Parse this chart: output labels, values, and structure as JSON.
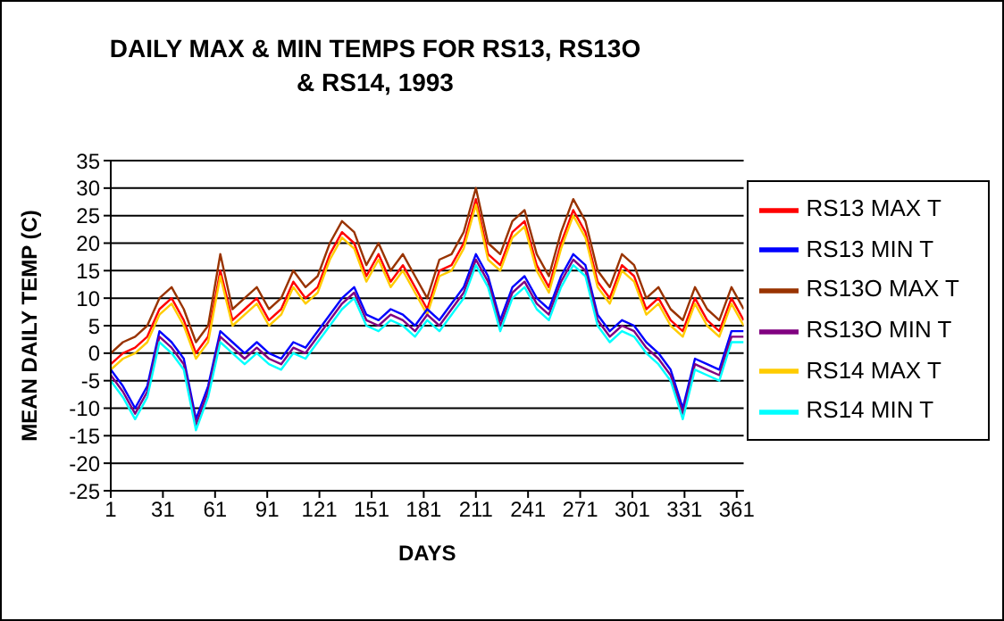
{
  "chart_data": {
    "type": "line",
    "title": "DAILY MAX & MIN TEMPS FOR RS13, RS13O & RS14, 1993",
    "xlabel": "DAYS",
    "ylabel": "MEAN DAILY TEMP (C)",
    "x": [
      1,
      8,
      15,
      22,
      29,
      36,
      43,
      50,
      57,
      64,
      71,
      78,
      85,
      92,
      99,
      106,
      113,
      120,
      127,
      134,
      141,
      148,
      155,
      162,
      169,
      176,
      183,
      190,
      197,
      204,
      211,
      218,
      225,
      232,
      239,
      246,
      253,
      260,
      267,
      274,
      281,
      288,
      295,
      302,
      309,
      316,
      323,
      330,
      337,
      344,
      351,
      358,
      365
    ],
    "series": [
      {
        "name": "RS13 MAX T",
        "color": "#ff0000",
        "values": [
          -2,
          0,
          1,
          3,
          8,
          10,
          6,
          0,
          3,
          15,
          6,
          8,
          10,
          6,
          8,
          13,
          10,
          12,
          18,
          22,
          20,
          14,
          18,
          13,
          16,
          12,
          8,
          15,
          16,
          20,
          28,
          18,
          16,
          22,
          24,
          16,
          12,
          20,
          26,
          22,
          13,
          10,
          16,
          14,
          8,
          10,
          6,
          4,
          10,
          6,
          4,
          10,
          6
        ]
      },
      {
        "name": "RS13O MAX T",
        "color": "#993300",
        "values": [
          0,
          2,
          3,
          5,
          10,
          12,
          8,
          2,
          5,
          18,
          8,
          10,
          12,
          8,
          10,
          15,
          12,
          14,
          20,
          24,
          22,
          16,
          20,
          15,
          18,
          14,
          10,
          17,
          18,
          22,
          30,
          20,
          18,
          24,
          26,
          18,
          14,
          22,
          28,
          24,
          15,
          12,
          18,
          16,
          10,
          12,
          8,
          6,
          12,
          8,
          6,
          12,
          8
        ]
      },
      {
        "name": "RS14 MAX T",
        "color": "#ffcc00",
        "values": [
          -3,
          -1,
          0,
          2,
          7,
          9,
          5,
          -1,
          2,
          14,
          5,
          7,
          9,
          5,
          7,
          12,
          9,
          11,
          17,
          21,
          19,
          13,
          17,
          12,
          15,
          11,
          7,
          14,
          15,
          19,
          27,
          17,
          15,
          21,
          23,
          15,
          11,
          19,
          25,
          21,
          12,
          9,
          15,
          13,
          7,
          9,
          5,
          3,
          9,
          5,
          3,
          9,
          5
        ]
      },
      {
        "name": "RS13 MIN T",
        "color": "#0000ff",
        "values": [
          -3,
          -6,
          -10,
          -6,
          4,
          2,
          -1,
          -12,
          -6,
          4,
          2,
          0,
          2,
          0,
          -1,
          2,
          1,
          4,
          7,
          10,
          12,
          7,
          6,
          8,
          7,
          5,
          8,
          6,
          9,
          12,
          18,
          14,
          6,
          12,
          14,
          10,
          8,
          14,
          18,
          16,
          7,
          4,
          6,
          5,
          2,
          0,
          -3,
          -10,
          -1,
          -2,
          -3,
          4,
          4
        ]
      },
      {
        "name": "RS13O MIN T",
        "color": "#800080",
        "values": [
          -4,
          -7,
          -11,
          -7,
          3,
          1,
          -2,
          -13,
          -7,
          3,
          1,
          -1,
          1,
          -1,
          -2,
          1,
          0,
          3,
          6,
          9,
          11,
          6,
          5,
          7,
          6,
          4,
          7,
          5,
          8,
          11,
          17,
          13,
          5,
          11,
          13,
          9,
          7,
          13,
          17,
          15,
          6,
          3,
          5,
          4,
          1,
          -1,
          -4,
          -11,
          -2,
          -3,
          -4,
          3,
          3
        ]
      },
      {
        "name": "RS14 MIN T",
        "color": "#00ffff",
        "values": [
          -5,
          -8,
          -12,
          -8,
          2,
          0,
          -3,
          -14,
          -8,
          2,
          0,
          -2,
          0,
          -2,
          -3,
          0,
          -1,
          2,
          5,
          8,
          10,
          5,
          4,
          6,
          5,
          3,
          6,
          4,
          7,
          10,
          16,
          12,
          4,
          10,
          12,
          8,
          6,
          12,
          16,
          14,
          5,
          2,
          4,
          3,
          0,
          -2,
          -5,
          -12,
          -3,
          -4,
          -5,
          2,
          2
        ]
      }
    ],
    "xlim": [
      1,
      365
    ],
    "xticks": [
      1,
      31,
      61,
      91,
      121,
      151,
      181,
      211,
      241,
      271,
      301,
      331,
      361
    ],
    "ylim": [
      -25,
      35
    ],
    "yticks": [
      -25,
      -20,
      -15,
      -10,
      -5,
      0,
      5,
      10,
      15,
      20,
      25,
      30,
      35
    ],
    "grid": "y",
    "legend": "right"
  }
}
